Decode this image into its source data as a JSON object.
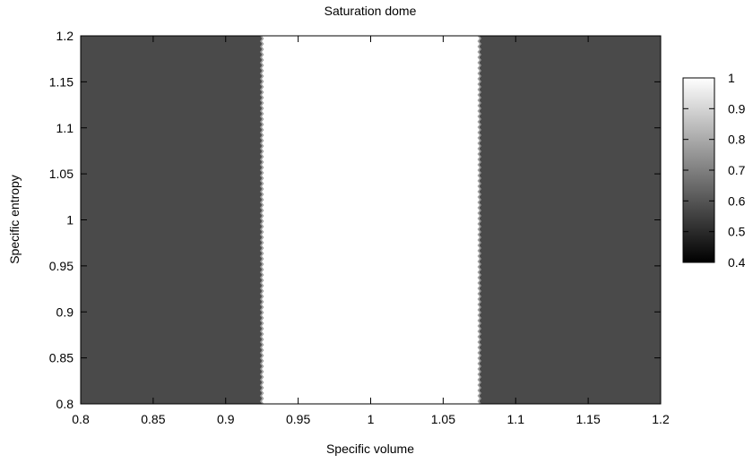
{
  "chart_data": {
    "type": "heatmap",
    "title": "Saturation dome",
    "xlabel": "Specific volume",
    "ylabel": "Specific entropy",
    "xlim": [
      0.8,
      1.2
    ],
    "ylim": [
      0.8,
      1.2
    ],
    "x_ticks": [
      "0.8",
      "0.85",
      "0.9",
      "0.95",
      "1",
      "1.05",
      "1.1",
      "1.15",
      "1.2"
    ],
    "y_ticks": [
      "0.8",
      "0.85",
      "0.9",
      "0.95",
      "1",
      "1.05",
      "1.1",
      "1.15",
      "1.2"
    ],
    "regions": [
      {
        "x": [
          0.8,
          0.925
        ],
        "value": 0.5,
        "color": "#4a4a4a"
      },
      {
        "x": [
          0.925,
          1.075
        ],
        "value": 1.0,
        "color": "#ffffff"
      },
      {
        "x": [
          1.075,
          1.2
        ],
        "value": 0.5,
        "color": "#4a4a4a"
      }
    ],
    "boundary_x": [
      0.925,
      1.075
    ],
    "colorbar": {
      "range": [
        0.4,
        1.0
      ],
      "ticks": [
        "1",
        "0.9",
        "0.8",
        "0.7",
        "0.6",
        "0.5",
        "0.4"
      ],
      "tick_values": [
        1.0,
        0.9,
        0.8,
        0.7,
        0.6,
        0.5,
        0.4
      ],
      "color_low": "#000000",
      "color_high": "#ffffff"
    },
    "grid": false
  }
}
